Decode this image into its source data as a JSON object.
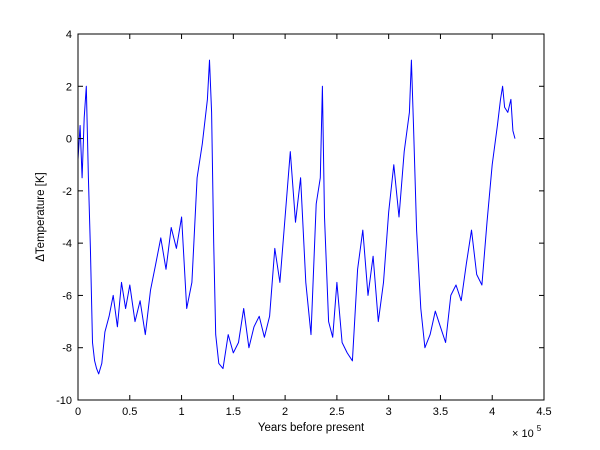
{
  "chart_data": {
    "type": "line",
    "xlabel": "Years before present",
    "ylabel": "ΔTemperature  [K]",
    "x_multiplier_label": "× 10",
    "x_multiplier_exp": "5",
    "xlim": [
      0,
      4.5
    ],
    "ylim": [
      -10,
      4
    ],
    "x_ticks": [
      0,
      0.5,
      1,
      1.5,
      2,
      2.5,
      3,
      3.5,
      4,
      4.5
    ],
    "x_tick_labels": [
      "0",
      "0.5",
      "1",
      "1.5",
      "2",
      "2.5",
      "3",
      "3.5",
      "4",
      "4.5"
    ],
    "y_ticks": [
      -10,
      -8,
      -6,
      -4,
      -2,
      0,
      2,
      4
    ],
    "y_tick_labels": [
      "-10",
      "-8",
      "-6",
      "-4",
      "-2",
      "0",
      "2",
      "4"
    ],
    "grid": false,
    "series": [
      {
        "color": "#0000ff",
        "x": [
          0,
          0.02,
          0.04,
          0.06,
          0.08,
          0.1,
          0.12,
          0.14,
          0.16,
          0.18,
          0.2,
          0.23,
          0.26,
          0.3,
          0.34,
          0.38,
          0.42,
          0.46,
          0.5,
          0.55,
          0.6,
          0.65,
          0.7,
          0.75,
          0.8,
          0.85,
          0.9,
          0.95,
          1,
          1.05,
          1.1,
          1.15,
          1.2,
          1.25,
          1.27,
          1.29,
          1.31,
          1.33,
          1.36,
          1.4,
          1.45,
          1.5,
          1.55,
          1.6,
          1.65,
          1.7,
          1.75,
          1.8,
          1.85,
          1.9,
          1.95,
          2,
          2.05,
          2.1,
          2.15,
          2.2,
          2.25,
          2.3,
          2.34,
          2.36,
          2.38,
          2.42,
          2.46,
          2.5,
          2.55,
          2.6,
          2.65,
          2.7,
          2.75,
          2.8,
          2.85,
          2.9,
          2.95,
          3,
          3.05,
          3.1,
          3.15,
          3.2,
          3.22,
          3.24,
          3.27,
          3.31,
          3.35,
          3.4,
          3.45,
          3.5,
          3.55,
          3.6,
          3.65,
          3.7,
          3.75,
          3.8,
          3.85,
          3.9,
          3.95,
          4,
          4.05,
          4.08,
          4.1,
          4.12,
          4.15,
          4.18,
          4.2,
          4.22
        ],
        "y": [
          -0.8,
          0.5,
          -1.5,
          0.8,
          2.0,
          -1.5,
          -4.2,
          -7.8,
          -8.5,
          -8.8,
          -9.0,
          -8.6,
          -7.4,
          -6.8,
          -6.0,
          -7.2,
          -5.5,
          -6.5,
          -5.6,
          -7.0,
          -6.2,
          -7.5,
          -5.8,
          -4.8,
          -3.8,
          -5.0,
          -3.4,
          -4.2,
          -3.0,
          -6.5,
          -5.5,
          -1.5,
          -0.2,
          1.5,
          3.0,
          1.0,
          -4.0,
          -7.5,
          -8.6,
          -8.8,
          -7.5,
          -8.2,
          -7.8,
          -6.5,
          -8.0,
          -7.2,
          -6.8,
          -7.6,
          -6.8,
          -4.2,
          -5.5,
          -3.0,
          -0.5,
          -3.2,
          -1.5,
          -5.5,
          -7.5,
          -2.5,
          -1.5,
          2.0,
          -3.0,
          -7.0,
          -7.6,
          -5.5,
          -7.8,
          -8.2,
          -8.5,
          -5.0,
          -3.5,
          -6.0,
          -4.5,
          -7.0,
          -5.5,
          -2.8,
          -1.0,
          -3.0,
          -0.5,
          1.0,
          3.0,
          0.5,
          -3.5,
          -6.5,
          -8.0,
          -7.5,
          -6.6,
          -7.2,
          -7.8,
          -6.0,
          -5.6,
          -6.2,
          -4.8,
          -3.5,
          -5.2,
          -5.6,
          -3.2,
          -1.0,
          0.5,
          1.5,
          2.0,
          1.2,
          1.0,
          1.5,
          0.3,
          0.0
        ]
      }
    ]
  }
}
